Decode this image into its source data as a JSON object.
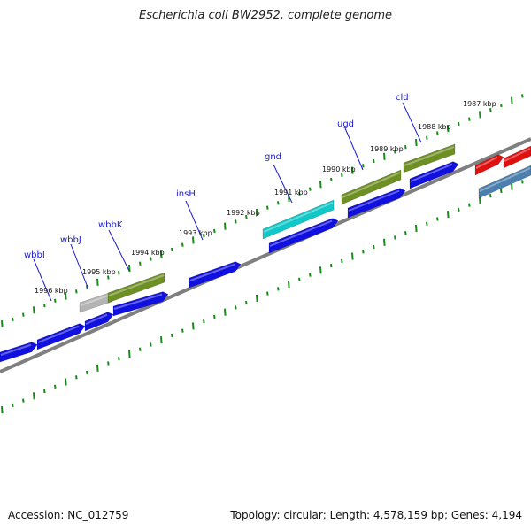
{
  "header": {
    "title": "Escherichia coli BW2952, complete genome"
  },
  "footer": {
    "accession": "Accession: NC_012759",
    "topology": "Topology: circular; Length: 4,578,159 bp; Genes: 4,194"
  },
  "colors": {
    "backbone": "#7f7f7f",
    "cds": "#1010e0",
    "gene_olive": "#6e8f24",
    "gene_cyan": "#10c8c8",
    "gene_gray": "#b4b4b4",
    "gene_red": "#e01010",
    "gene_steel": "#4a7fae",
    "tick": "#1a8a1a",
    "label_blue": "#1a1ad0"
  },
  "kbp_labels": [
    "1996 kbp",
    "1995 kbp",
    "1994 kbp",
    "1993 kbp",
    "1992 kbp",
    "1991 kbp",
    "1990 kbp",
    "1989 kbp",
    "1988 kbp",
    "1987 kbp"
  ],
  "gene_labels": [
    "wbbI",
    "wbbJ",
    "wbbK",
    "insH",
    "gnd",
    "ugd",
    "cld"
  ]
}
